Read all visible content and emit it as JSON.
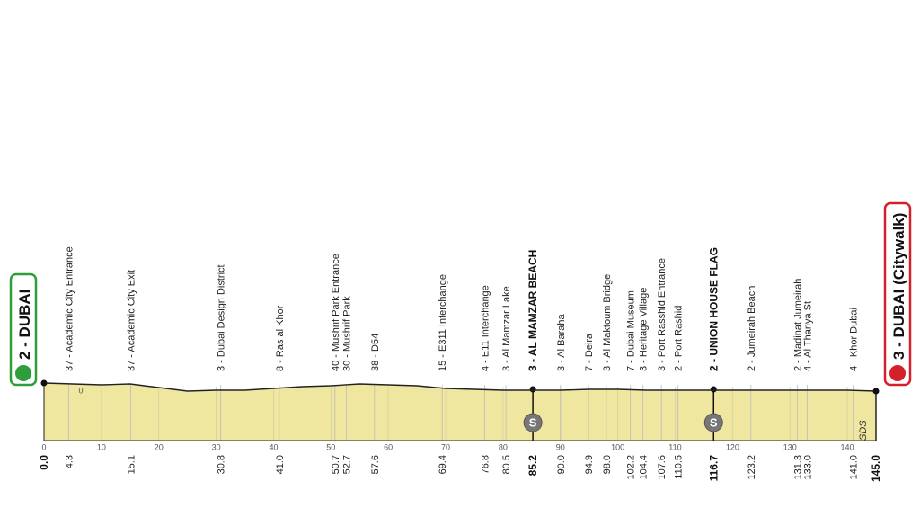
{
  "chart_data": {
    "type": "area",
    "x": [
      0,
      5,
      10,
      15,
      20,
      25,
      30,
      35,
      40,
      45,
      50,
      55,
      60,
      65,
      70,
      75,
      80,
      85,
      90,
      95,
      100,
      105,
      110,
      115,
      120,
      125,
      130,
      135,
      140,
      145
    ],
    "values": [
      9,
      8,
      7,
      8,
      4,
      0,
      1,
      1,
      3,
      5,
      6,
      8,
      7,
      6,
      3,
      2,
      1,
      1,
      1,
      2,
      2,
      1,
      1,
      1,
      1,
      1,
      1,
      1,
      1,
      0
    ],
    "color": "#efe6a0",
    "xlim": [
      0,
      145
    ],
    "xticks": [
      0,
      10,
      20,
      30,
      40,
      50,
      60,
      70,
      80,
      90,
      100,
      110,
      120,
      130,
      140
    ],
    "ylim": [
      -55,
      225
    ],
    "yticks": [
      0
    ],
    "start": {
      "km": 0,
      "km_label": "0.0",
      "label": "2 - DUBAI",
      "color": "#2e9e3b"
    },
    "finish": {
      "km": 145,
      "km_label": "145.0",
      "label": "3 - DUBAI (Citywalk)",
      "color": "#d4202a"
    },
    "waypoints": [
      {
        "km": 4.3,
        "label": "37 - Academic City Entrance"
      },
      {
        "km": 15.1,
        "label": "37 - Academic City Exit"
      },
      {
        "km": 30.8,
        "label": "3 - Dubai Design District"
      },
      {
        "km": 41,
        "km_label": "41.0",
        "label": "8 - Ras al Khor"
      },
      {
        "km": 50.7,
        "label": "40 - Mushrif Park Entrance"
      },
      {
        "km": 52.7,
        "label": "30 - Mushrif Park"
      },
      {
        "km": 57.6,
        "label": "38 - D54"
      },
      {
        "km": 69.4,
        "label": "15 - E311 Interchange"
      },
      {
        "km": 76.8,
        "label": "4 - E11 Interchange"
      },
      {
        "km": 80.5,
        "label": "3 - Al Mamzar Lake"
      },
      {
        "km": 85.2,
        "label": "3 - AL MAMZAR BEACH",
        "sprint": true
      },
      {
        "km": 90,
        "km_label": "90.0",
        "label": "3 - Al Baraha"
      },
      {
        "km": 94.9,
        "label": "7 - Deira"
      },
      {
        "km": 98,
        "km_label": "98.0",
        "label": "3 - Al Maktoum Bridge"
      },
      {
        "km": 102.2,
        "label": "7 - Dubai Museum"
      },
      {
        "km": 104.4,
        "label": "3 - Heritage Village"
      },
      {
        "km": 107.6,
        "label": "3 - Port Rasshid Entrance"
      },
      {
        "km": 110.5,
        "label": "2 - Port Rashid"
      },
      {
        "km": 116.7,
        "label": "2 - UNION HOUSE FLAG",
        "sprint": true
      },
      {
        "km": 123.2,
        "label": "2 - Jumeirah Beach"
      },
      {
        "km": 131.3,
        "label": "2 - Madinat Jumeirah"
      },
      {
        "km": 133,
        "km_label": "133.0",
        "label": "4 - Al Thanya St"
      },
      {
        "km": 141,
        "km_label": "141.0",
        "label": "4 - Khor Dubai"
      }
    ],
    "sprint_icon": "S",
    "brand": "SDS"
  }
}
